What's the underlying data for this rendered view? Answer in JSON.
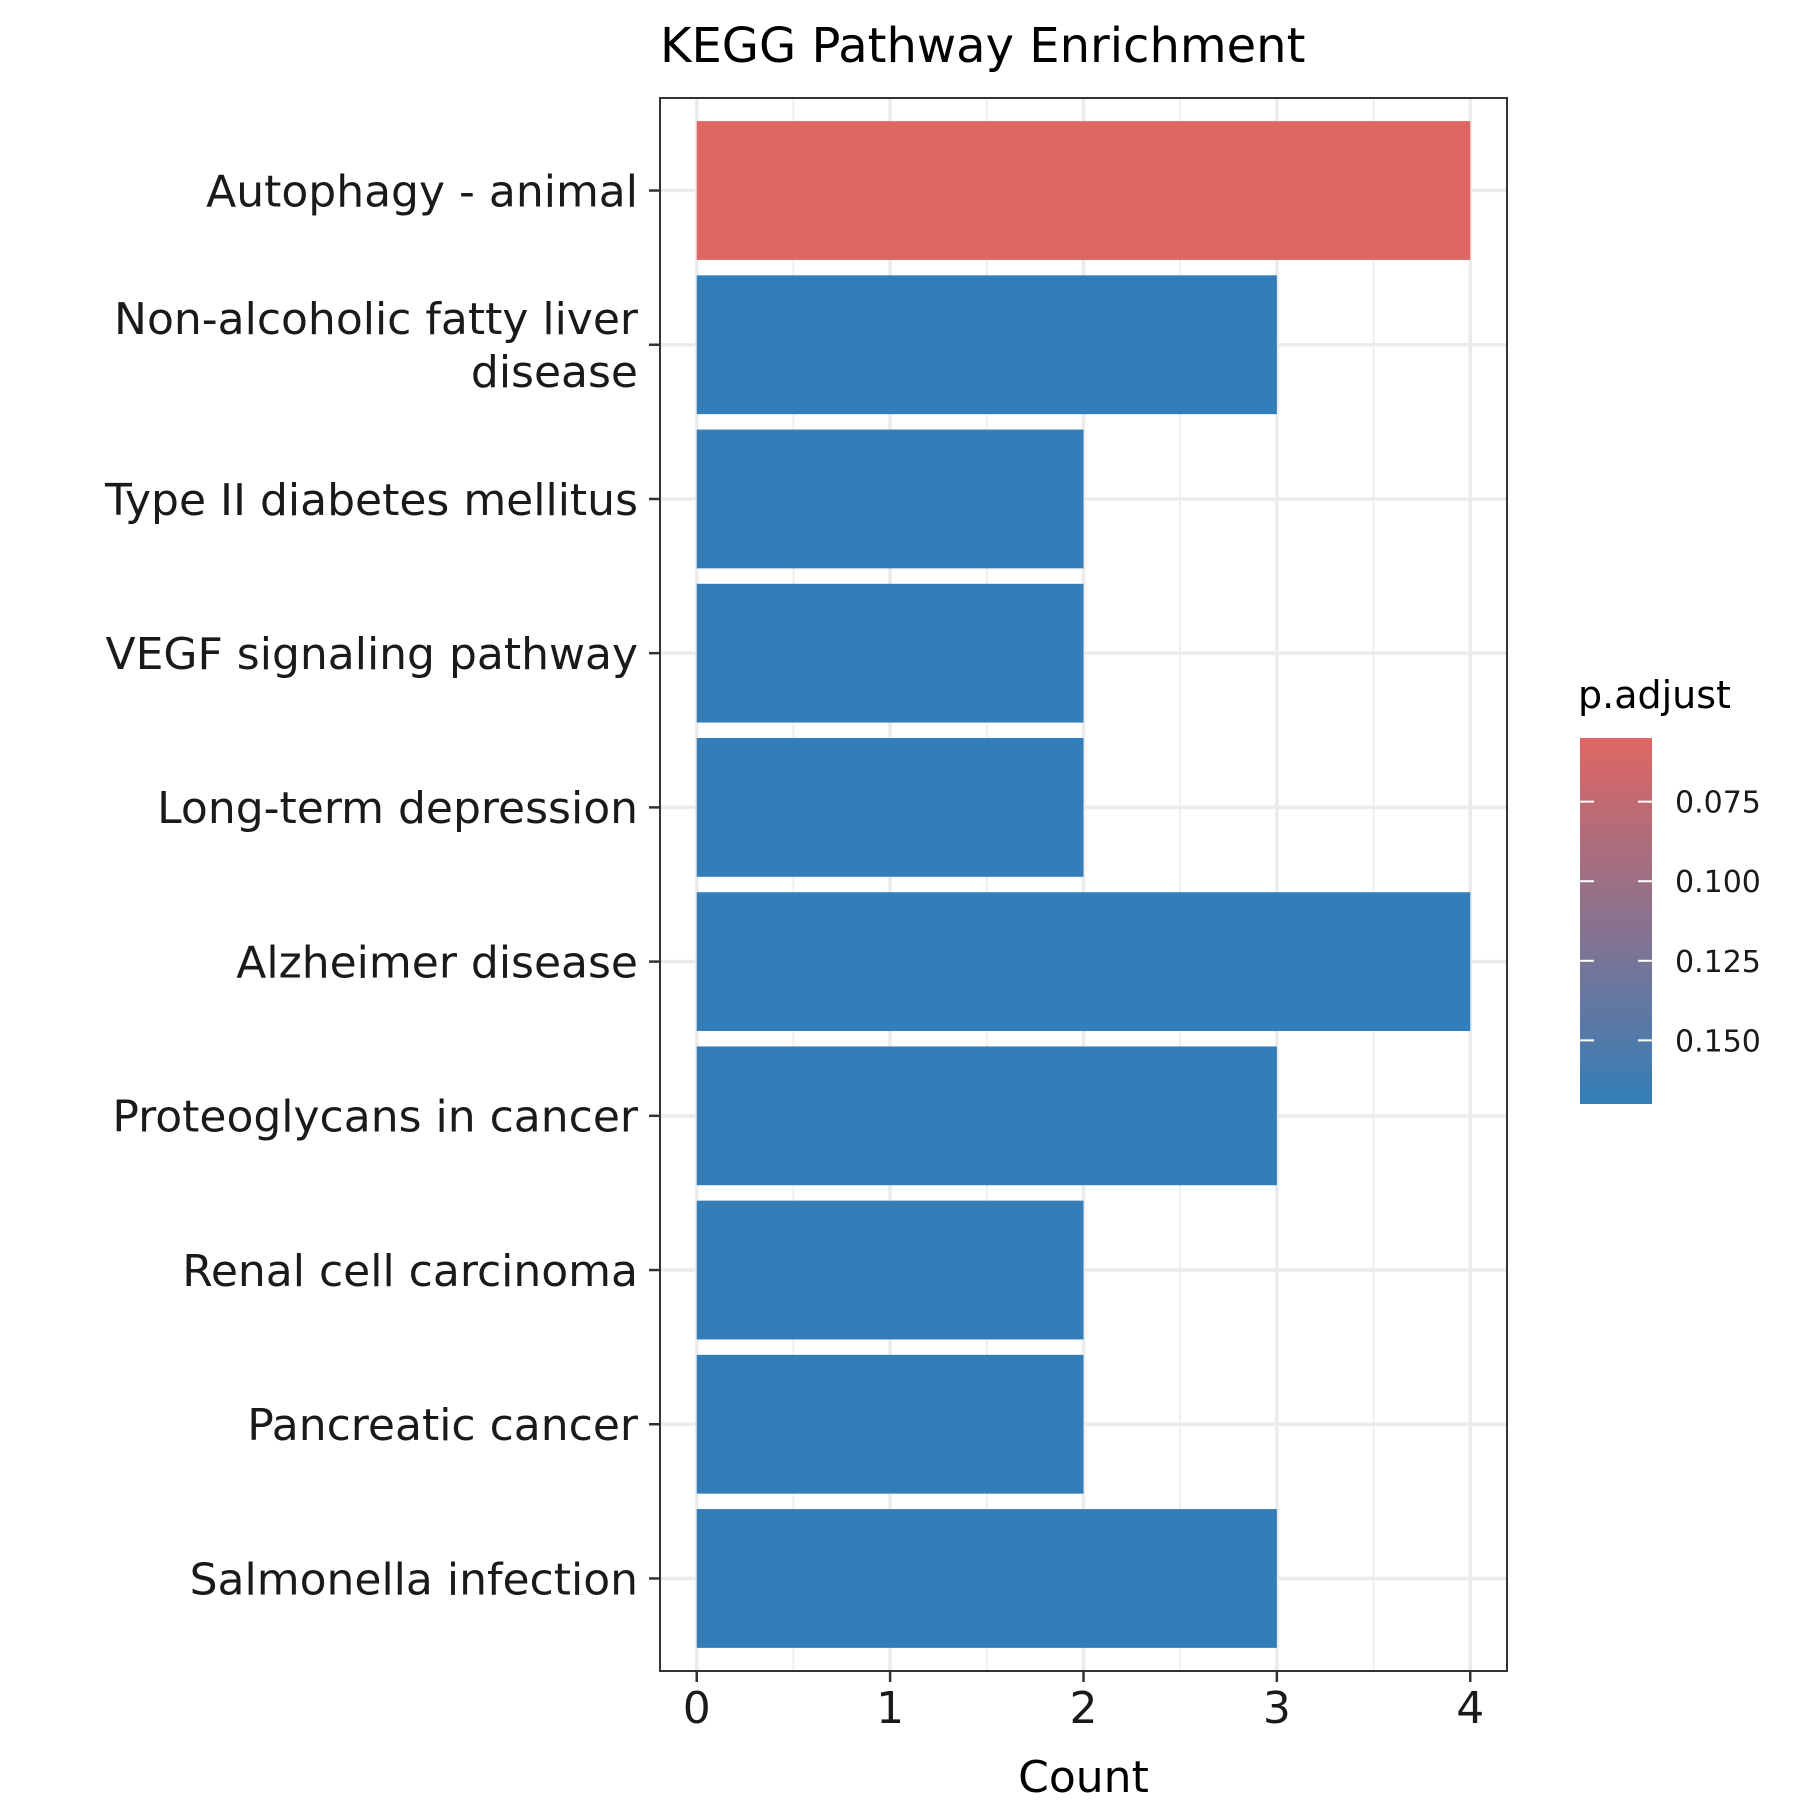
{
  "chart_data": {
    "type": "bar",
    "orientation": "horizontal",
    "title": "KEGG Pathway Enrichment",
    "xlabel": "Count",
    "ylabel": "",
    "categories": [
      "Autophagy - animal",
      "Non-alcoholic fatty liver disease",
      "Type II diabetes mellitus",
      "VEGF signaling pathway",
      "Long-term depression",
      "Alzheimer disease",
      "Proteoglycans in cancer",
      "Renal cell carcinoma",
      "Pancreatic cancer",
      "Salmonella infection"
    ],
    "category_label_lines": [
      [
        "Autophagy - animal"
      ],
      [
        "Non-alcoholic fatty liver",
        "disease"
      ],
      [
        "Type II diabetes mellitus"
      ],
      [
        "VEGF signaling pathway"
      ],
      [
        "Long-term depression"
      ],
      [
        "Alzheimer disease"
      ],
      [
        "Proteoglycans in cancer"
      ],
      [
        "Renal cell carcinoma"
      ],
      [
        "Pancreatic cancer"
      ],
      [
        "Salmonella infection"
      ]
    ],
    "values": [
      4,
      3,
      2,
      2,
      2,
      4,
      3,
      2,
      2,
      3
    ],
    "p_adjust": [
      0.055,
      0.17,
      0.17,
      0.17,
      0.17,
      0.17,
      0.17,
      0.17,
      0.17,
      0.17
    ],
    "xlim": [
      -0.19,
      4.19
    ],
    "x_ticks": [
      "0",
      "1",
      "2",
      "3",
      "4"
    ],
    "grid": true,
    "legend": {
      "title": "p.adjust",
      "position": "right",
      "range": [
        0.055,
        0.17
      ],
      "ticks": [
        "0.075",
        "0.100",
        "0.125",
        "0.150"
      ],
      "color_low": "#E06663",
      "color_high": "#337EB8"
    }
  }
}
